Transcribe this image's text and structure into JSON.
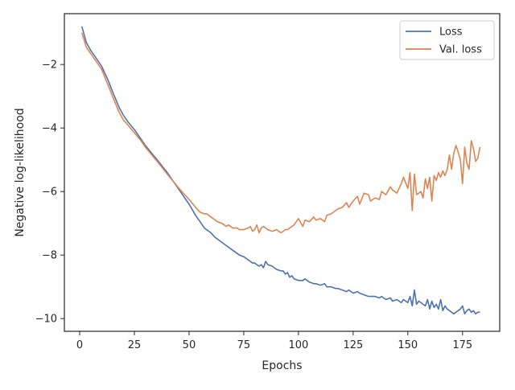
{
  "chart_data": {
    "type": "line",
    "xlabel": "Epochs",
    "ylabel": "Negative log-likelihood",
    "xlim": [
      -7,
      192
    ],
    "ylim": [
      -10.4,
      -0.4
    ],
    "xticks": [
      0,
      25,
      50,
      75,
      100,
      125,
      150,
      175
    ],
    "yticks": [
      -10,
      -8,
      -6,
      -4,
      -2
    ],
    "grid": false,
    "legend": {
      "placement": "top-right"
    },
    "series": [
      {
        "name": "Loss",
        "color": "#4c72b0",
        "x": [
          1,
          3,
          5,
          7,
          10,
          13,
          15,
          18,
          20,
          22,
          25,
          28,
          30,
          33,
          36,
          40,
          43,
          46,
          50,
          53,
          55,
          57,
          58,
          60,
          62,
          63,
          65,
          67,
          68,
          70,
          72,
          73,
          75,
          77,
          78,
          79,
          80,
          81,
          82,
          83,
          84,
          85,
          86,
          88,
          90,
          92,
          93,
          94,
          95,
          96,
          97,
          98,
          100,
          102,
          103,
          105,
          107,
          108,
          110,
          112,
          113,
          115,
          117,
          118,
          120,
          122,
          123,
          125,
          127,
          128,
          130,
          132,
          133,
          135,
          137,
          138,
          140,
          142,
          143,
          145,
          147,
          148,
          150,
          151,
          152,
          153,
          154,
          155,
          156,
          157,
          158,
          159,
          160,
          161,
          162,
          163,
          164,
          165,
          166,
          167,
          168,
          169,
          170,
          171,
          172,
          173,
          174,
          175,
          176,
          177,
          178,
          179,
          180,
          181,
          182,
          183
        ],
        "y": [
          -0.8,
          -1.3,
          -1.55,
          -1.75,
          -2.05,
          -2.5,
          -2.85,
          -3.35,
          -3.6,
          -3.8,
          -4.05,
          -4.35,
          -4.55,
          -4.8,
          -5.05,
          -5.4,
          -5.7,
          -6.0,
          -6.4,
          -6.75,
          -6.95,
          -7.15,
          -7.2,
          -7.3,
          -7.45,
          -7.5,
          -7.6,
          -7.7,
          -7.75,
          -7.85,
          -7.95,
          -8.0,
          -8.05,
          -8.15,
          -8.2,
          -8.25,
          -8.25,
          -8.3,
          -8.35,
          -8.3,
          -8.4,
          -8.2,
          -8.3,
          -8.35,
          -8.45,
          -8.5,
          -8.5,
          -8.6,
          -8.55,
          -8.7,
          -8.65,
          -8.75,
          -8.8,
          -8.8,
          -8.75,
          -8.85,
          -8.9,
          -8.9,
          -8.95,
          -8.9,
          -9.0,
          -9.0,
          -9.05,
          -9.05,
          -9.1,
          -9.15,
          -9.1,
          -9.2,
          -9.15,
          -9.2,
          -9.25,
          -9.3,
          -9.3,
          -9.3,
          -9.35,
          -9.3,
          -9.4,
          -9.35,
          -9.45,
          -9.4,
          -9.5,
          -9.4,
          -9.5,
          -9.3,
          -9.6,
          -9.1,
          -9.55,
          -9.45,
          -9.5,
          -9.55,
          -9.6,
          -9.4,
          -9.7,
          -9.45,
          -9.65,
          -9.55,
          -9.7,
          -9.4,
          -9.75,
          -9.6,
          -9.7,
          -9.75,
          -9.8,
          -9.85,
          -9.8,
          -9.75,
          -9.7,
          -9.6,
          -9.85,
          -9.75,
          -9.7,
          -9.8,
          -9.75,
          -9.85,
          -9.8,
          -9.8
        ]
      },
      {
        "name": "Val. loss",
        "color": "#dd8452",
        "x": [
          1,
          3,
          5,
          7,
          10,
          13,
          15,
          18,
          20,
          22,
          25,
          28,
          30,
          33,
          36,
          40,
          43,
          46,
          50,
          53,
          55,
          57,
          58,
          60,
          62,
          63,
          65,
          67,
          68,
          70,
          72,
          73,
          75,
          77,
          78,
          79,
          80,
          81,
          82,
          83,
          84,
          85,
          86,
          88,
          90,
          92,
          93,
          94,
          95,
          96,
          97,
          98,
          100,
          102,
          103,
          105,
          107,
          108,
          110,
          112,
          113,
          115,
          117,
          118,
          120,
          122,
          123,
          125,
          127,
          128,
          130,
          132,
          133,
          135,
          137,
          138,
          140,
          142,
          143,
          145,
          147,
          148,
          150,
          151,
          152,
          153,
          154,
          155,
          156,
          157,
          158,
          159,
          160,
          161,
          162,
          163,
          164,
          165,
          166,
          167,
          168,
          169,
          170,
          171,
          172,
          173,
          174,
          175,
          176,
          177,
          178,
          179,
          180,
          181,
          182,
          183
        ],
        "y": [
          -1.0,
          -1.45,
          -1.65,
          -1.85,
          -2.15,
          -2.65,
          -3.0,
          -3.5,
          -3.75,
          -3.9,
          -4.15,
          -4.4,
          -4.6,
          -4.85,
          -5.1,
          -5.45,
          -5.7,
          -5.95,
          -6.25,
          -6.5,
          -6.65,
          -6.7,
          -6.7,
          -6.8,
          -6.9,
          -6.95,
          -7.0,
          -7.1,
          -7.05,
          -7.15,
          -7.15,
          -7.2,
          -7.2,
          -7.15,
          -7.1,
          -7.25,
          -7.2,
          -7.05,
          -7.3,
          -7.15,
          -7.1,
          -7.15,
          -7.2,
          -7.25,
          -7.2,
          -7.3,
          -7.25,
          -7.2,
          -7.2,
          -7.15,
          -7.1,
          -7.05,
          -6.85,
          -7.1,
          -6.9,
          -6.95,
          -6.8,
          -6.9,
          -6.85,
          -6.95,
          -6.75,
          -6.7,
          -6.6,
          -6.55,
          -6.5,
          -6.35,
          -6.5,
          -6.3,
          -6.15,
          -6.4,
          -6.05,
          -6.1,
          -6.3,
          -6.2,
          -6.25,
          -6.0,
          -6.1,
          -5.85,
          -5.95,
          -6.05,
          -5.75,
          -5.55,
          -5.9,
          -5.4,
          -6.6,
          -5.45,
          -6.1,
          -6.05,
          -6.0,
          -6.2,
          -5.6,
          -5.9,
          -5.55,
          -6.3,
          -5.5,
          -5.65,
          -5.4,
          -5.55,
          -5.35,
          -5.5,
          -5.3,
          -4.85,
          -5.3,
          -4.8,
          -4.55,
          -4.75,
          -5.0,
          -5.75,
          -4.6,
          -5.1,
          -5.3,
          -4.4,
          -4.65,
          -5.05,
          -4.95,
          -4.6
        ]
      }
    ]
  }
}
